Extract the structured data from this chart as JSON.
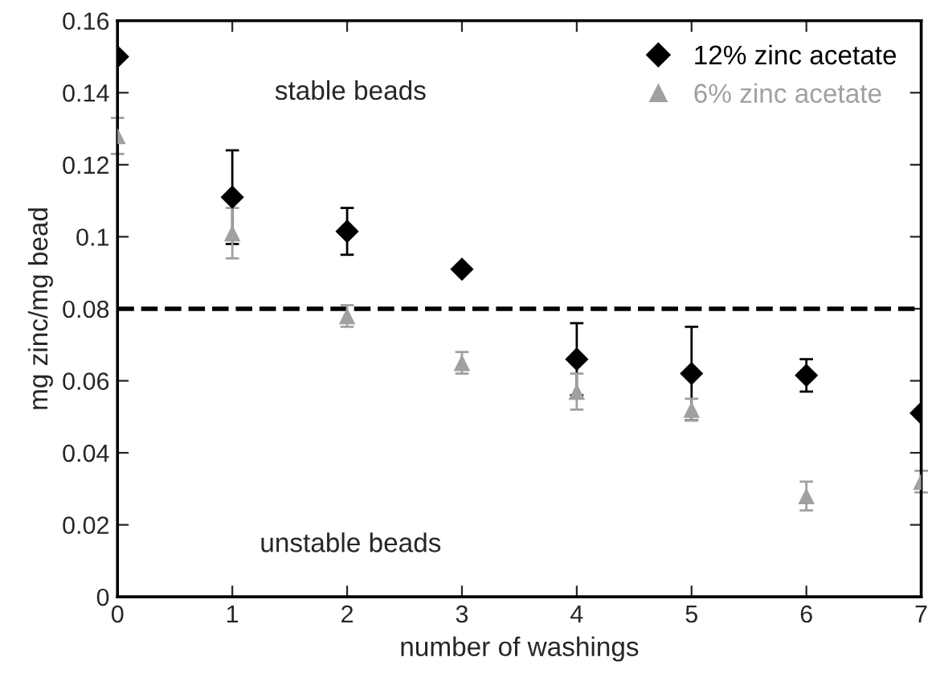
{
  "chart_data": {
    "type": "scatter",
    "xlabel": "number of washings",
    "ylabel": "mg zinc/mg bead",
    "x": [
      0,
      1,
      2,
      3,
      4,
      5,
      6,
      7
    ],
    "series": [
      {
        "name": "12% zinc acetate",
        "color": "#000000",
        "marker": "diamond",
        "values": [
          0.15,
          0.111,
          0.1015,
          0.091,
          0.066,
          0.062,
          0.0615,
          0.051
        ],
        "errors": [
          null,
          0.013,
          0.0065,
          null,
          0.01,
          0.013,
          0.0045,
          null
        ]
      },
      {
        "name": "6% zinc acetate",
        "color": "#a0a0a0",
        "marker": "triangle",
        "values": [
          0.128,
          0.101,
          0.078,
          0.065,
          0.057,
          0.052,
          0.028,
          0.032
        ],
        "errors": [
          0.005,
          0.007,
          0.003,
          0.003,
          0.005,
          0.003,
          0.004,
          0.003
        ]
      }
    ],
    "xlim": [
      0,
      7
    ],
    "xticks": [
      0,
      1,
      2,
      3,
      4,
      5,
      6,
      7
    ],
    "ylim": [
      0,
      0.16
    ],
    "yticks": [
      {
        "value": 0,
        "label": "0"
      },
      {
        "value": 0.02,
        "label": "0.02"
      },
      {
        "value": 0.04,
        "label": "0.04"
      },
      {
        "value": 0.06,
        "label": "0.06"
      },
      {
        "value": 0.08,
        "label": "0.08"
      },
      {
        "value": 0.1,
        "label": "0.1"
      },
      {
        "value": 0.12,
        "label": "0.12"
      },
      {
        "value": 0.14,
        "label": "0.14"
      },
      {
        "value": 0.16,
        "label": "0.16"
      }
    ],
    "ref_lines": [
      {
        "axis": "y",
        "value": 0.08,
        "color": "#000000",
        "line_style": "dashed"
      }
    ],
    "annotations": [
      "stable beads",
      "unstable beads"
    ],
    "grid": false,
    "legend": "top right"
  }
}
